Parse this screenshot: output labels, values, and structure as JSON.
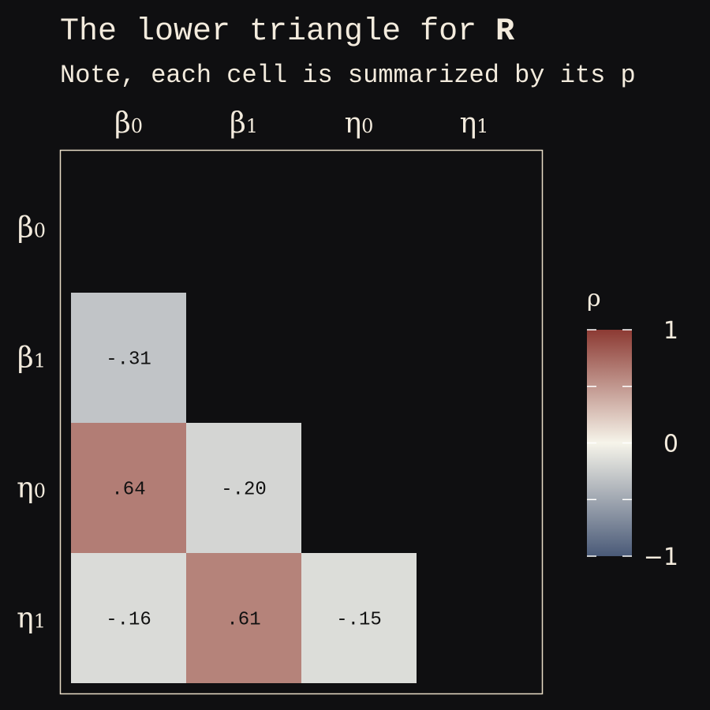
{
  "title": {
    "text": "The lower triangle for ",
    "bold": "R"
  },
  "subtitle": "Note, each cell is summarized by its p",
  "chart_data": {
    "type": "heatmap",
    "variables": [
      {
        "base": "β",
        "sub": "0"
      },
      {
        "base": "β",
        "sub": "1"
      },
      {
        "base": "η",
        "sub": "0"
      },
      {
        "base": "η",
        "sub": "1"
      }
    ],
    "cells": [
      {
        "row": 1,
        "col": 0,
        "value": -0.31,
        "label": "-.31"
      },
      {
        "row": 2,
        "col": 0,
        "value": 0.64,
        "label": ".64"
      },
      {
        "row": 2,
        "col": 1,
        "value": -0.2,
        "label": "-.20"
      },
      {
        "row": 3,
        "col": 0,
        "value": -0.16,
        "label": "-.16"
      },
      {
        "row": 3,
        "col": 1,
        "value": 0.61,
        "label": ".61"
      },
      {
        "row": 3,
        "col": 2,
        "value": -0.15,
        "label": "-.15"
      }
    ],
    "legend": {
      "title": "ρ",
      "range": [
        -1,
        1
      ],
      "ticks": [
        {
          "value": 1,
          "label": "1"
        },
        {
          "value": 0,
          "label": "0"
        },
        {
          "value": -1,
          "label": "−1"
        }
      ]
    },
    "colors": {
      "negative": "#4a5a78",
      "neutral": "#f6f4ea",
      "positive": "#8c3a33",
      "background": "#0f0f11",
      "frame": "#e8dcc6"
    }
  }
}
